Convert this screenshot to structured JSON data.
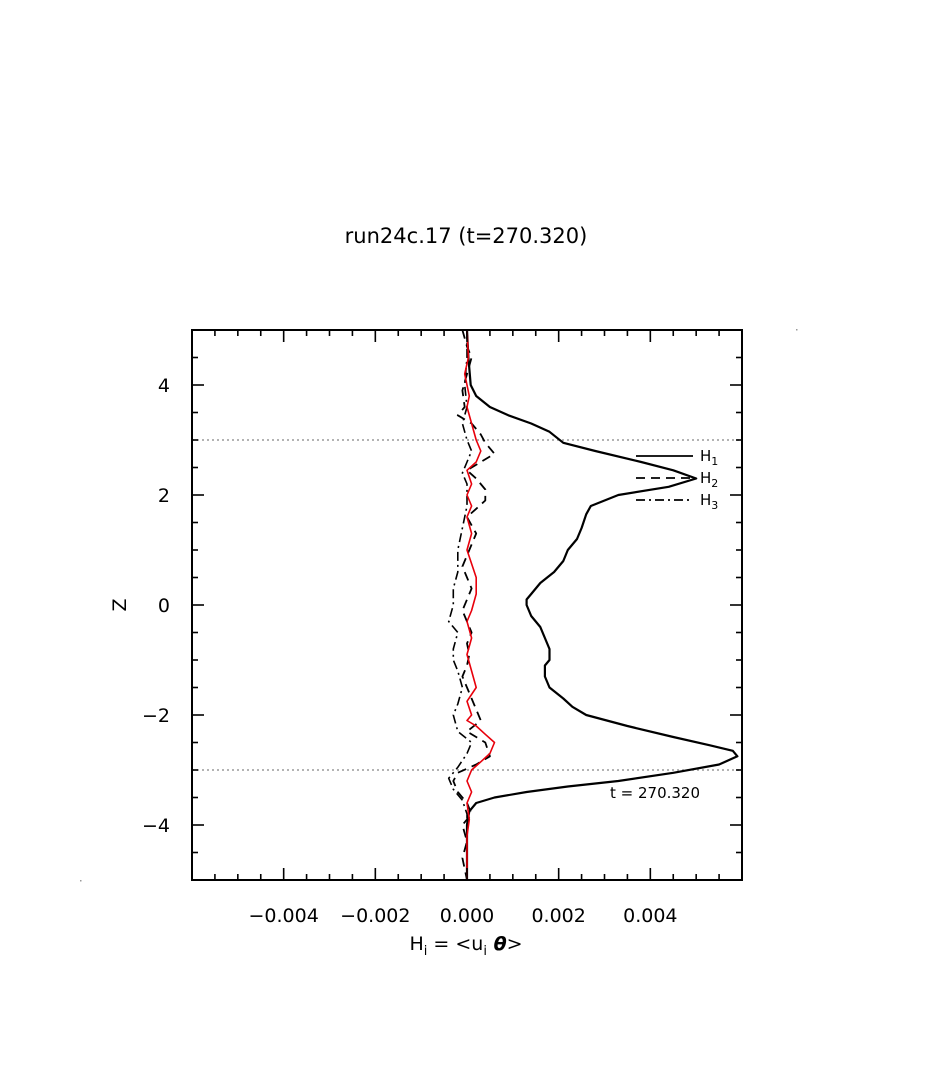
{
  "chart_data": {
    "type": "line",
    "title": "run24c.17 (t=270.320)",
    "xlabel": {
      "base": "H",
      "sub": "i",
      "eq": " = <u",
      "sub2": "i",
      "theta": " θ",
      "close": ">"
    },
    "ylabel": "Z",
    "xlim": [
      -0.006,
      0.006
    ],
    "ylim": [
      -5,
      5
    ],
    "x_ticks": [
      -0.004,
      -0.002,
      0.0,
      0.002,
      0.004
    ],
    "x_tick_labels": [
      "−0.004",
      "−0.002",
      "0.000",
      "0.002",
      "0.004"
    ],
    "y_ticks": [
      -4,
      -2,
      0,
      2,
      4
    ],
    "y_tick_labels": [
      "−4",
      "−2",
      "0",
      "2",
      "4"
    ],
    "reference_lines_z": [
      3,
      -3
    ],
    "annotation": "t = 270.320",
    "legend": {
      "placement": "top-right",
      "entries": [
        {
          "base": "H",
          "sub": "1",
          "style": "solid"
        },
        {
          "base": "H",
          "sub": "2",
          "style": "dashed"
        },
        {
          "base": "H",
          "sub": "3",
          "style": "dashdot"
        }
      ]
    },
    "series": [
      {
        "name": "H1",
        "color": "#000000",
        "style": "solid",
        "points": [
          [
            0.0,
            5.0
          ],
          [
            3e-05,
            4.5
          ],
          [
            8e-05,
            4.0
          ],
          [
            0.0002,
            3.8
          ],
          [
            0.0005,
            3.6
          ],
          [
            0.0009,
            3.45
          ],
          [
            0.0014,
            3.3
          ],
          [
            0.0018,
            3.15
          ],
          [
            0.0021,
            2.95
          ],
          [
            0.0028,
            2.8
          ],
          [
            0.0038,
            2.6
          ],
          [
            0.0045,
            2.45
          ],
          [
            0.005,
            2.3
          ],
          [
            0.0044,
            2.15
          ],
          [
            0.0033,
            2.0
          ],
          [
            0.0027,
            1.8
          ],
          [
            0.0026,
            1.65
          ],
          [
            0.0025,
            1.4
          ],
          [
            0.0024,
            1.2
          ],
          [
            0.0022,
            1.0
          ],
          [
            0.0021,
            0.8
          ],
          [
            0.0019,
            0.6
          ],
          [
            0.0016,
            0.4
          ],
          [
            0.0014,
            0.2
          ],
          [
            0.0013,
            0.1
          ],
          [
            0.0013,
            0.0
          ],
          [
            0.0014,
            -0.2
          ],
          [
            0.0016,
            -0.4
          ],
          [
            0.0017,
            -0.6
          ],
          [
            0.0018,
            -0.8
          ],
          [
            0.0018,
            -1.0
          ],
          [
            0.0017,
            -1.1
          ],
          [
            0.0017,
            -1.3
          ],
          [
            0.0018,
            -1.5
          ],
          [
            0.0021,
            -1.7
          ],
          [
            0.0023,
            -1.85
          ],
          [
            0.0026,
            -2.0
          ],
          [
            0.0035,
            -2.2
          ],
          [
            0.0045,
            -2.4
          ],
          [
            0.0053,
            -2.55
          ],
          [
            0.0058,
            -2.65
          ],
          [
            0.0059,
            -2.75
          ],
          [
            0.0055,
            -2.9
          ],
          [
            0.0045,
            -3.05
          ],
          [
            0.0033,
            -3.2
          ],
          [
            0.0022,
            -3.3
          ],
          [
            0.0013,
            -3.4
          ],
          [
            0.0006,
            -3.5
          ],
          [
            0.0002,
            -3.6
          ],
          [
            5e-05,
            -3.75
          ],
          [
            0.0,
            -4.0
          ],
          [
            0.0,
            -5.0
          ]
        ]
      },
      {
        "name": "H2",
        "color": "#000000",
        "style": "dashed",
        "points": [
          [
            -0.0001,
            5.0
          ],
          [
            0.0,
            4.7
          ],
          [
            0.0001,
            4.5
          ],
          [
            0.0,
            4.2
          ],
          [
            -0.0001,
            3.9
          ],
          [
            -5e-05,
            3.6
          ],
          [
            -0.0002,
            3.45
          ],
          [
            0.0001,
            3.3
          ],
          [
            0.0003,
            3.1
          ],
          [
            0.0004,
            2.95
          ],
          [
            0.0006,
            2.75
          ],
          [
            0.0003,
            2.6
          ],
          [
            0.0,
            2.45
          ],
          [
            0.0002,
            2.3
          ],
          [
            0.0004,
            2.1
          ],
          [
            0.0004,
            1.9
          ],
          [
            0.0002,
            1.75
          ],
          [
            0.0,
            1.6
          ],
          [
            0.0002,
            1.3
          ],
          [
            0.0001,
            1.1
          ],
          [
            0.0,
            0.9
          ],
          [
            -0.0001,
            0.7
          ],
          [
            0.0,
            0.5
          ],
          [
            0.0001,
            0.3
          ],
          [
            0.0,
            0.1
          ],
          [
            -0.0001,
            -0.1
          ],
          [
            0.0,
            -0.3
          ],
          [
            0.0001,
            -0.5
          ],
          [
            0.0,
            -0.7
          ],
          [
            5e-05,
            -0.9
          ],
          [
            0.0,
            -1.1
          ],
          [
            -0.0001,
            -1.3
          ],
          [
            0.0,
            -1.5
          ],
          [
            0.0001,
            -1.7
          ],
          [
            0.0002,
            -1.9
          ],
          [
            0.0003,
            -2.1
          ],
          [
            0.0,
            -2.3
          ],
          [
            0.0004,
            -2.5
          ],
          [
            0.0005,
            -2.75
          ],
          [
            0.0002,
            -2.9
          ],
          [
            -0.0002,
            -3.05
          ],
          [
            -0.0003,
            -3.2
          ],
          [
            -0.0002,
            -3.4
          ],
          [
            0.0,
            -3.6
          ],
          [
            0.0001,
            -3.8
          ],
          [
            -0.0001,
            -4.0
          ],
          [
            0.0,
            -4.3
          ],
          [
            -0.0001,
            -4.6
          ],
          [
            0.0,
            -5.0
          ]
        ]
      },
      {
        "name": "H3",
        "color": "#000000",
        "style": "dashdot",
        "points": [
          [
            0.0,
            5.0
          ],
          [
            0.0,
            4.5
          ],
          [
            -5e-05,
            4.0
          ],
          [
            0.0,
            3.6
          ],
          [
            -0.0001,
            3.3
          ],
          [
            0.0,
            3.0
          ],
          [
            0.0001,
            2.8
          ],
          [
            0.0,
            2.6
          ],
          [
            -0.0001,
            2.4
          ],
          [
            0.0,
            2.2
          ],
          [
            0.0,
            1.8
          ],
          [
            -0.0001,
            1.4
          ],
          [
            -0.0002,
            1.0
          ],
          [
            -0.0002,
            0.6
          ],
          [
            -0.0003,
            0.3
          ],
          [
            -0.0003,
            0.0
          ],
          [
            -0.0004,
            -0.3
          ],
          [
            -0.0002,
            -0.5
          ],
          [
            -0.0003,
            -0.8
          ],
          [
            -0.0003,
            -1.0
          ],
          [
            -0.0002,
            -1.2
          ],
          [
            -0.0001,
            -1.5
          ],
          [
            -0.0002,
            -1.8
          ],
          [
            -0.0003,
            -2.0
          ],
          [
            -0.0002,
            -2.3
          ],
          [
            0.0001,
            -2.5
          ],
          [
            0.0,
            -2.7
          ],
          [
            -0.0002,
            -2.95
          ],
          [
            -0.0004,
            -3.15
          ],
          [
            -0.0003,
            -3.35
          ],
          [
            -0.0001,
            -3.55
          ],
          [
            0.0,
            -3.8
          ],
          [
            0.0,
            -4.2
          ],
          [
            0.0,
            -5.0
          ]
        ]
      },
      {
        "name": "",
        "color": "#e8000b",
        "style": "solid",
        "points": [
          [
            0.0,
            5.0
          ],
          [
            3e-05,
            4.5
          ],
          [
            -5e-05,
            4.2
          ],
          [
            0.0,
            4.0
          ],
          [
            5e-05,
            3.8
          ],
          [
            0.0,
            3.6
          ],
          [
            0.0001,
            3.3
          ],
          [
            0.0002,
            3.0
          ],
          [
            0.0003,
            2.8
          ],
          [
            0.0002,
            2.6
          ],
          [
            0.0,
            2.45
          ],
          [
            0.0001,
            2.2
          ],
          [
            0.0,
            2.0
          ],
          [
            0.0001,
            1.8
          ],
          [
            0.0,
            1.6
          ],
          [
            0.0001,
            1.3
          ],
          [
            0.0,
            1.0
          ],
          [
            0.0002,
            0.5
          ],
          [
            0.0002,
            0.2
          ],
          [
            0.0001,
            -0.1
          ],
          [
            0.0,
            -0.3
          ],
          [
            0.0001,
            -0.6
          ],
          [
            0.0,
            -0.9
          ],
          [
            0.0001,
            -1.2
          ],
          [
            0.0002,
            -1.5
          ],
          [
            0.0,
            -1.75
          ],
          [
            0.0001,
            -2.0
          ],
          [
            0.0,
            -2.1
          ],
          [
            0.0002,
            -2.2
          ],
          [
            0.0004,
            -2.35
          ],
          [
            0.0006,
            -2.5
          ],
          [
            0.0005,
            -2.7
          ],
          [
            0.0003,
            -2.85
          ],
          [
            0.0001,
            -3.0
          ],
          [
            0.0,
            -3.2
          ],
          [
            0.0001,
            -3.4
          ],
          [
            0.0,
            -3.6
          ],
          [
            5e-05,
            -3.9
          ],
          [
            0.0,
            -4.2
          ],
          [
            0.0,
            -5.0
          ]
        ]
      }
    ]
  }
}
